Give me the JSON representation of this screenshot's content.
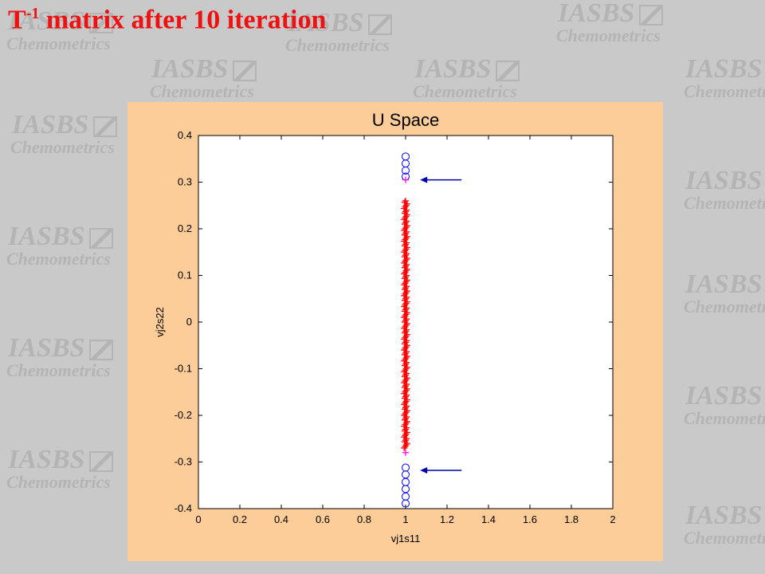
{
  "slide": {
    "title_base": "T",
    "title_sup": "-1",
    "title_rest": " matrix after 10 iteration",
    "watermark": {
      "line1": "IASBS",
      "line2": "Chemometrics"
    }
  },
  "chart_data": {
    "type": "scatter",
    "title": "U Space",
    "xlabel": "vj1s11",
    "ylabel": "vj2s22",
    "xlim": [
      0,
      2
    ],
    "ylim": [
      -0.4,
      0.4
    ],
    "xticks": [
      "0",
      "0.2",
      "0.4",
      "0.6",
      "0.8",
      "1",
      "1.2",
      "1.4",
      "1.6",
      "1.8",
      "2"
    ],
    "yticks": [
      "0.4",
      "0.3",
      "0.2",
      "0.1",
      "0",
      "-0.1",
      "-0.2",
      "-0.3",
      "-0.4"
    ],
    "grid": false,
    "series": [
      {
        "marker": "circle",
        "color": "#0000ff",
        "x": [
          1,
          1,
          1,
          1,
          1,
          1,
          1,
          1,
          1,
          1
        ],
        "y": [
          0.355,
          0.34,
          0.325,
          0.312,
          -0.312,
          -0.327,
          -0.343,
          -0.358,
          -0.374,
          -0.389
        ]
      },
      {
        "marker": "plus",
        "color": "#ff0000",
        "x_min": 1.0,
        "x_max": 1.0,
        "y_min": -0.27,
        "y_max": 0.26
      },
      {
        "marker": "plus",
        "color": "#ff00ff",
        "x": [
          1,
          1
        ],
        "y": [
          0.305,
          -0.28
        ]
      }
    ],
    "annotations": [
      {
        "type": "arrow",
        "color": "#0000aa",
        "x_from": 1.27,
        "x_to": 1.07,
        "y": 0.305
      },
      {
        "type": "arrow",
        "color": "#0000aa",
        "x_from": 1.27,
        "x_to": 1.07,
        "y": -0.318
      }
    ]
  }
}
